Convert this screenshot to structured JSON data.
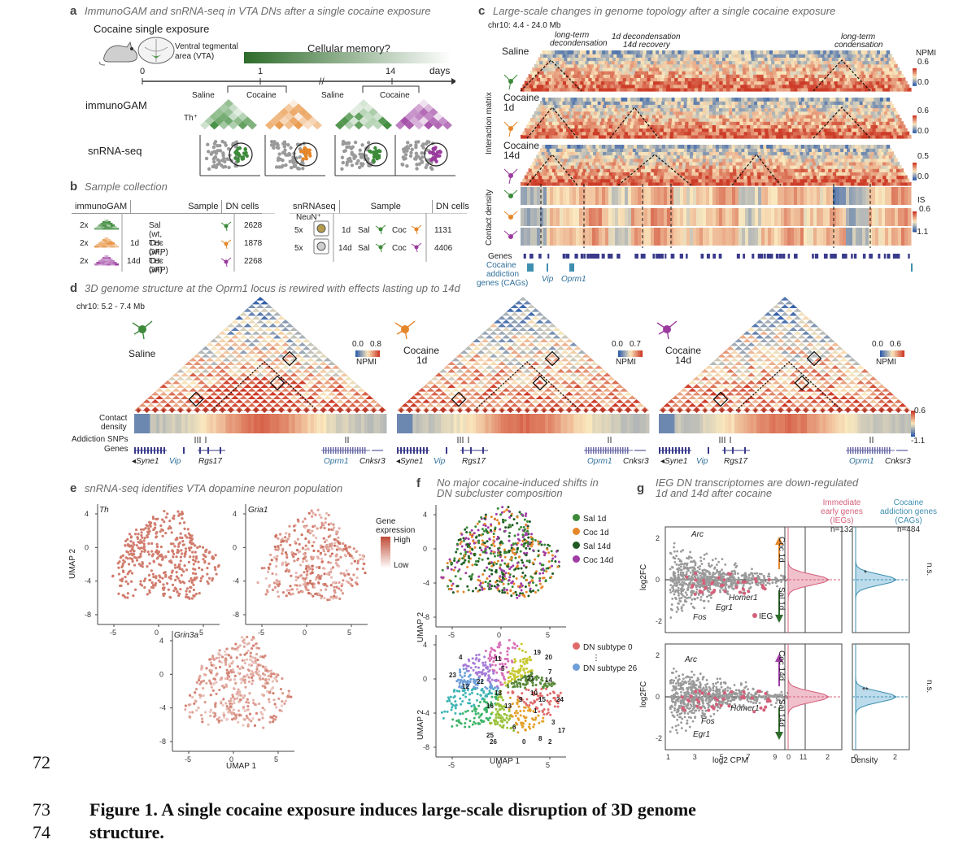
{
  "panel_a": {
    "label": "a",
    "title": "ImmunoGAM and snRNA-seq in VTA DNs after a single cocaine exposure",
    "cocaine_label": "Cocaine single exposure",
    "vta_label_1": "Ventral tegmental",
    "vta_label_2": "area (VTA)",
    "memory_label": "Cellular memory?",
    "timeline": [
      "0",
      "1",
      "14"
    ],
    "days_label": "days",
    "row_labels": [
      "immunoGAM",
      "snRNA-seq"
    ],
    "th_label": "Th⁺",
    "conditions": [
      "Saline",
      "Cocaine",
      "Saline",
      "Cocaine"
    ],
    "colors": {
      "saline": "#3d8a3a",
      "coc1d": "#e5862a",
      "coc14d": "#9a3a9e"
    }
  },
  "panel_b": {
    "label": "b",
    "title": "Sample collection",
    "gam_header": [
      "immunoGAM",
      "Sample",
      "DN cells"
    ],
    "gam_rows": [
      {
        "rep": "2x",
        "day": "",
        "sample": "Sal  (wt, TH-GFP)",
        "cells": "2628"
      },
      {
        "rep": "2x",
        "day": "1d",
        "sample": "Coc (wt, TH-GFP)",
        "cells": "1878"
      },
      {
        "rep": "2x",
        "day": "14d",
        "sample": "Coc (wt)",
        "cells": "2268"
      }
    ],
    "sn_header": [
      "snRNAseq",
      "Sample",
      "DN cells"
    ],
    "neun_label": "NeuN⁺",
    "sn_rows": [
      {
        "rep": "5x",
        "day": "1d",
        "sal": "Sal",
        "coc": "Coc",
        "cells": "1131"
      },
      {
        "rep": "5x",
        "day": "14d",
        "sal": "Sal",
        "coc": "Coc",
        "cells": "4406"
      }
    ]
  },
  "panel_c": {
    "label": "c",
    "title": "Large-scale changes in genome topology after a single cocaine exposure",
    "region": "chr10: 4.4 - 24.0 Mb",
    "annotations": [
      "long-term",
      "decondensation",
      "1d decondensation",
      "14d recovery",
      "long-term",
      "condensation"
    ],
    "rows": [
      "Saline",
      "Cocaine",
      "1d",
      "Cocaine",
      "14d"
    ],
    "side_labels": [
      "Interaction matrix",
      "Contact density"
    ],
    "npmi_label": "NPMI",
    "npmi_scales": [
      [
        "0.6",
        "0.0"
      ],
      [
        "0.6",
        "0.0"
      ],
      [
        "0.5",
        "0.0"
      ]
    ],
    "is_label": "IS",
    "is_scale": [
      "0.6",
      "-1.1"
    ],
    "genes_label": "Genes",
    "cag_label": [
      "Cocaine",
      "addiction",
      "genes (CAGs)"
    ],
    "gene_names": [
      "Vip",
      "Oprm1"
    ]
  },
  "panel_d": {
    "label": "d",
    "title": "3D genome structure at the Oprm1 locus is rewired with effects lasting up to 14d",
    "region": "chr10: 5.2 - 7.4 Mb",
    "conditions": [
      {
        "name": "Saline",
        "sub": "",
        "scale_lo": "0.0",
        "scale_hi": "0.8"
      },
      {
        "name": "Cocaine",
        "sub": "1d",
        "scale_lo": "0.0",
        "scale_hi": "0.7"
      },
      {
        "name": "Cocaine",
        "sub": "14d",
        "scale_lo": "0.0",
        "scale_hi": "0.6"
      }
    ],
    "npmi_label": "NPMI",
    "row_labels": [
      "Contact",
      "density",
      "Addiction SNPs",
      "Genes"
    ],
    "genes": [
      "◂Syne1",
      "Vip",
      "Rgs17",
      "Oprm1",
      "Cnksr3"
    ],
    "density_scale": [
      "0.6",
      "-1.1"
    ]
  },
  "panel_e": {
    "label": "e",
    "title": "snRNA-seq identifies VTA dopamine neuron population",
    "genes": [
      "Th",
      "Gria1",
      "Grin3a"
    ],
    "legend_title": [
      "Gene",
      "expression"
    ],
    "legend_high": "High",
    "legend_low": "Low",
    "xlabel": "UMAP 1",
    "ylabel": "UMAP 2",
    "xticks": [
      "-5",
      "0",
      "5"
    ],
    "yticks": [
      "4",
      "0",
      "-4",
      "-8"
    ]
  },
  "panel_f": {
    "label": "f",
    "title": [
      "No major cocaine-induced shifts in",
      "DN subcluster composition"
    ],
    "legend_top": [
      {
        "name": "Sal 1d",
        "color": "#3d8a3a"
      },
      {
        "name": "Coc 1d",
        "color": "#e5862a"
      },
      {
        "name": "Sal 14d",
        "color": "#1f5a24"
      },
      {
        "name": "Coc 14d",
        "color": "#a03ca6"
      }
    ],
    "legend_bottom": [
      {
        "name": "DN subtype 0",
        "color": "#e06a6a"
      },
      {
        "name": "DN subtype 26",
        "color": "#6f9fd8"
      }
    ],
    "legend_dots": "⋮",
    "cluster_ids": [
      "4",
      "23",
      "12",
      "22",
      "11",
      "5",
      "19",
      "20",
      "7",
      "18",
      "13",
      "9",
      "10",
      "15",
      "24",
      "14",
      "21",
      "16",
      "6",
      "1",
      "25",
      "3",
      "17",
      "26",
      "0",
      "8",
      "2"
    ],
    "xlabel": "UMAP 1",
    "ylabel": "UMAP 2",
    "xticks": [
      "-5",
      "0",
      "5"
    ],
    "yticks": [
      "4",
      "0",
      "-4",
      "-8"
    ]
  },
  "panel_g": {
    "label": "g",
    "title": [
      "IEG DN transcriptomes are down-regulated",
      "1d and 14d after cocaine"
    ],
    "col_titles": [
      {
        "lines": [
          "Immediate",
          "early genes",
          "(IEGs)"
        ],
        "n": "n=132",
        "color": "#d4607a"
      },
      {
        "lines": [
          "Cocaine",
          "addiction genes",
          "(CAGs)"
        ],
        "n": "n=484",
        "color": "#3f8fb0"
      }
    ],
    "top": {
      "genes": [
        "Arc",
        "Homer1",
        "Egr1",
        "Fos"
      ],
      "up_label": "Coc 1d",
      "down_label": "Sal 1d",
      "ieg_legend": "IEG",
      "sig_ieg": "*",
      "sig_cag": "n.s."
    },
    "bottom": {
      "genes": [
        "Arc",
        "Homer1",
        "Fos",
        "Egr1"
      ],
      "up_label": "Coc 14d",
      "down_label": "Sal 14d",
      "sig_ieg": "**",
      "sig_cag": "n.s."
    },
    "ylabel": "log2FC",
    "xlabel": "log2 CPM",
    "density_label": "Density",
    "xticks": [
      "1",
      "3",
      "5",
      "7",
      "9",
      "11"
    ],
    "yticks": [
      "2",
      "0",
      "-2"
    ],
    "density_ticks": [
      "0",
      "2"
    ]
  },
  "page": {
    "line_numbers": [
      "72",
      "73",
      "74"
    ],
    "caption_line1": "Figure 1. A single cocaine exposure induces large-scale disruption of 3D genome",
    "caption_line2": "structure."
  }
}
